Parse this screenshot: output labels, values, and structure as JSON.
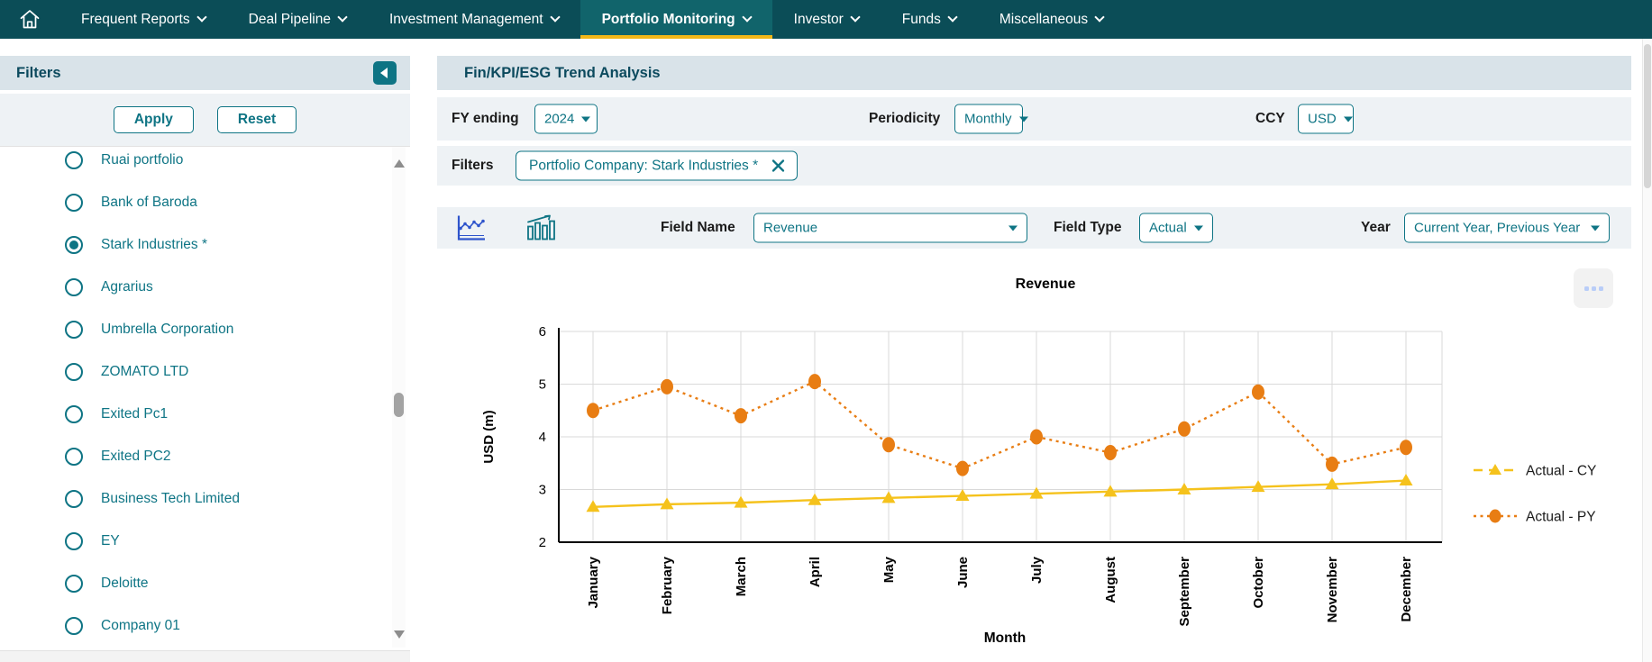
{
  "nav": {
    "items": [
      {
        "label": "Frequent Reports",
        "active": false
      },
      {
        "label": "Deal Pipeline",
        "active": false
      },
      {
        "label": "Investment Management",
        "active": false
      },
      {
        "label": "Portfolio Monitoring",
        "active": true
      },
      {
        "label": "Investor",
        "active": false
      },
      {
        "label": "Funds",
        "active": false
      },
      {
        "label": "Miscellaneous",
        "active": false
      }
    ]
  },
  "sidebar": {
    "title": "Filters",
    "apply_label": "Apply",
    "reset_label": "Reset",
    "companies": [
      {
        "label": "Ruai portfolio",
        "selected": false
      },
      {
        "label": "Bank of Baroda",
        "selected": false
      },
      {
        "label": "Stark Industries *",
        "selected": true
      },
      {
        "label": "Agrarius",
        "selected": false
      },
      {
        "label": "Umbrella Corporation",
        "selected": false
      },
      {
        "label": "ZOMATO LTD",
        "selected": false
      },
      {
        "label": "Exited Pc1",
        "selected": false
      },
      {
        "label": "Exited PC2",
        "selected": false
      },
      {
        "label": "Business Tech Limited",
        "selected": false
      },
      {
        "label": "EY",
        "selected": false
      },
      {
        "label": "Deloitte",
        "selected": false
      },
      {
        "label": "Company 01",
        "selected": false
      }
    ]
  },
  "main": {
    "title": "Fin/KPI/ESG Trend Analysis",
    "fy_ending": {
      "label": "FY ending",
      "value": "2024"
    },
    "periodicity": {
      "label": "Periodicity",
      "value": "Monthly"
    },
    "ccy": {
      "label": "CCY",
      "value": "USD"
    },
    "filters_row": {
      "label": "Filters",
      "chip": "Portfolio Company: Stark Industries *"
    },
    "field_name": {
      "label": "Field Name",
      "value": "Revenue"
    },
    "field_type": {
      "label": "Field Type",
      "value": "Actual"
    },
    "year": {
      "label": "Year",
      "value": "Current Year, Previous Year"
    }
  },
  "colors": {
    "nav_bg": "#0b4d57",
    "nav_active_bg": "#11646b",
    "accent_underline": "#f2b718",
    "teal_primary": "#0e7484",
    "header_strip_bg": "#d9e3e9",
    "row_bg": "#eef2f5",
    "series_cy_yellow": "#f5c21c",
    "series_py_orange": "#e87d13",
    "gridline": "#d9d9d9"
  },
  "chart_data": {
    "type": "line",
    "title": "Revenue",
    "xlabel": "Month",
    "ylabel": "USD (m)",
    "ylim": [
      2,
      6
    ],
    "yticks": [
      2,
      3,
      4,
      5,
      6
    ],
    "grid": true,
    "legend_position": "right",
    "categories": [
      "January",
      "February",
      "March",
      "April",
      "May",
      "June",
      "July",
      "August",
      "September",
      "October",
      "November",
      "December"
    ],
    "series": [
      {
        "name": "Actual - CY",
        "color": "#f5c21c",
        "marker": "triangle",
        "line": "solid",
        "values": [
          2.67,
          2.72,
          2.75,
          2.8,
          2.84,
          2.88,
          2.92,
          2.96,
          3.0,
          3.05,
          3.1,
          3.17
        ]
      },
      {
        "name": "Actual - PY",
        "color": "#e87d13",
        "marker": "circle",
        "line": "dotted",
        "values": [
          4.5,
          4.95,
          4.4,
          5.05,
          3.85,
          3.4,
          4.0,
          3.7,
          4.15,
          4.85,
          3.48,
          3.8
        ]
      }
    ]
  }
}
